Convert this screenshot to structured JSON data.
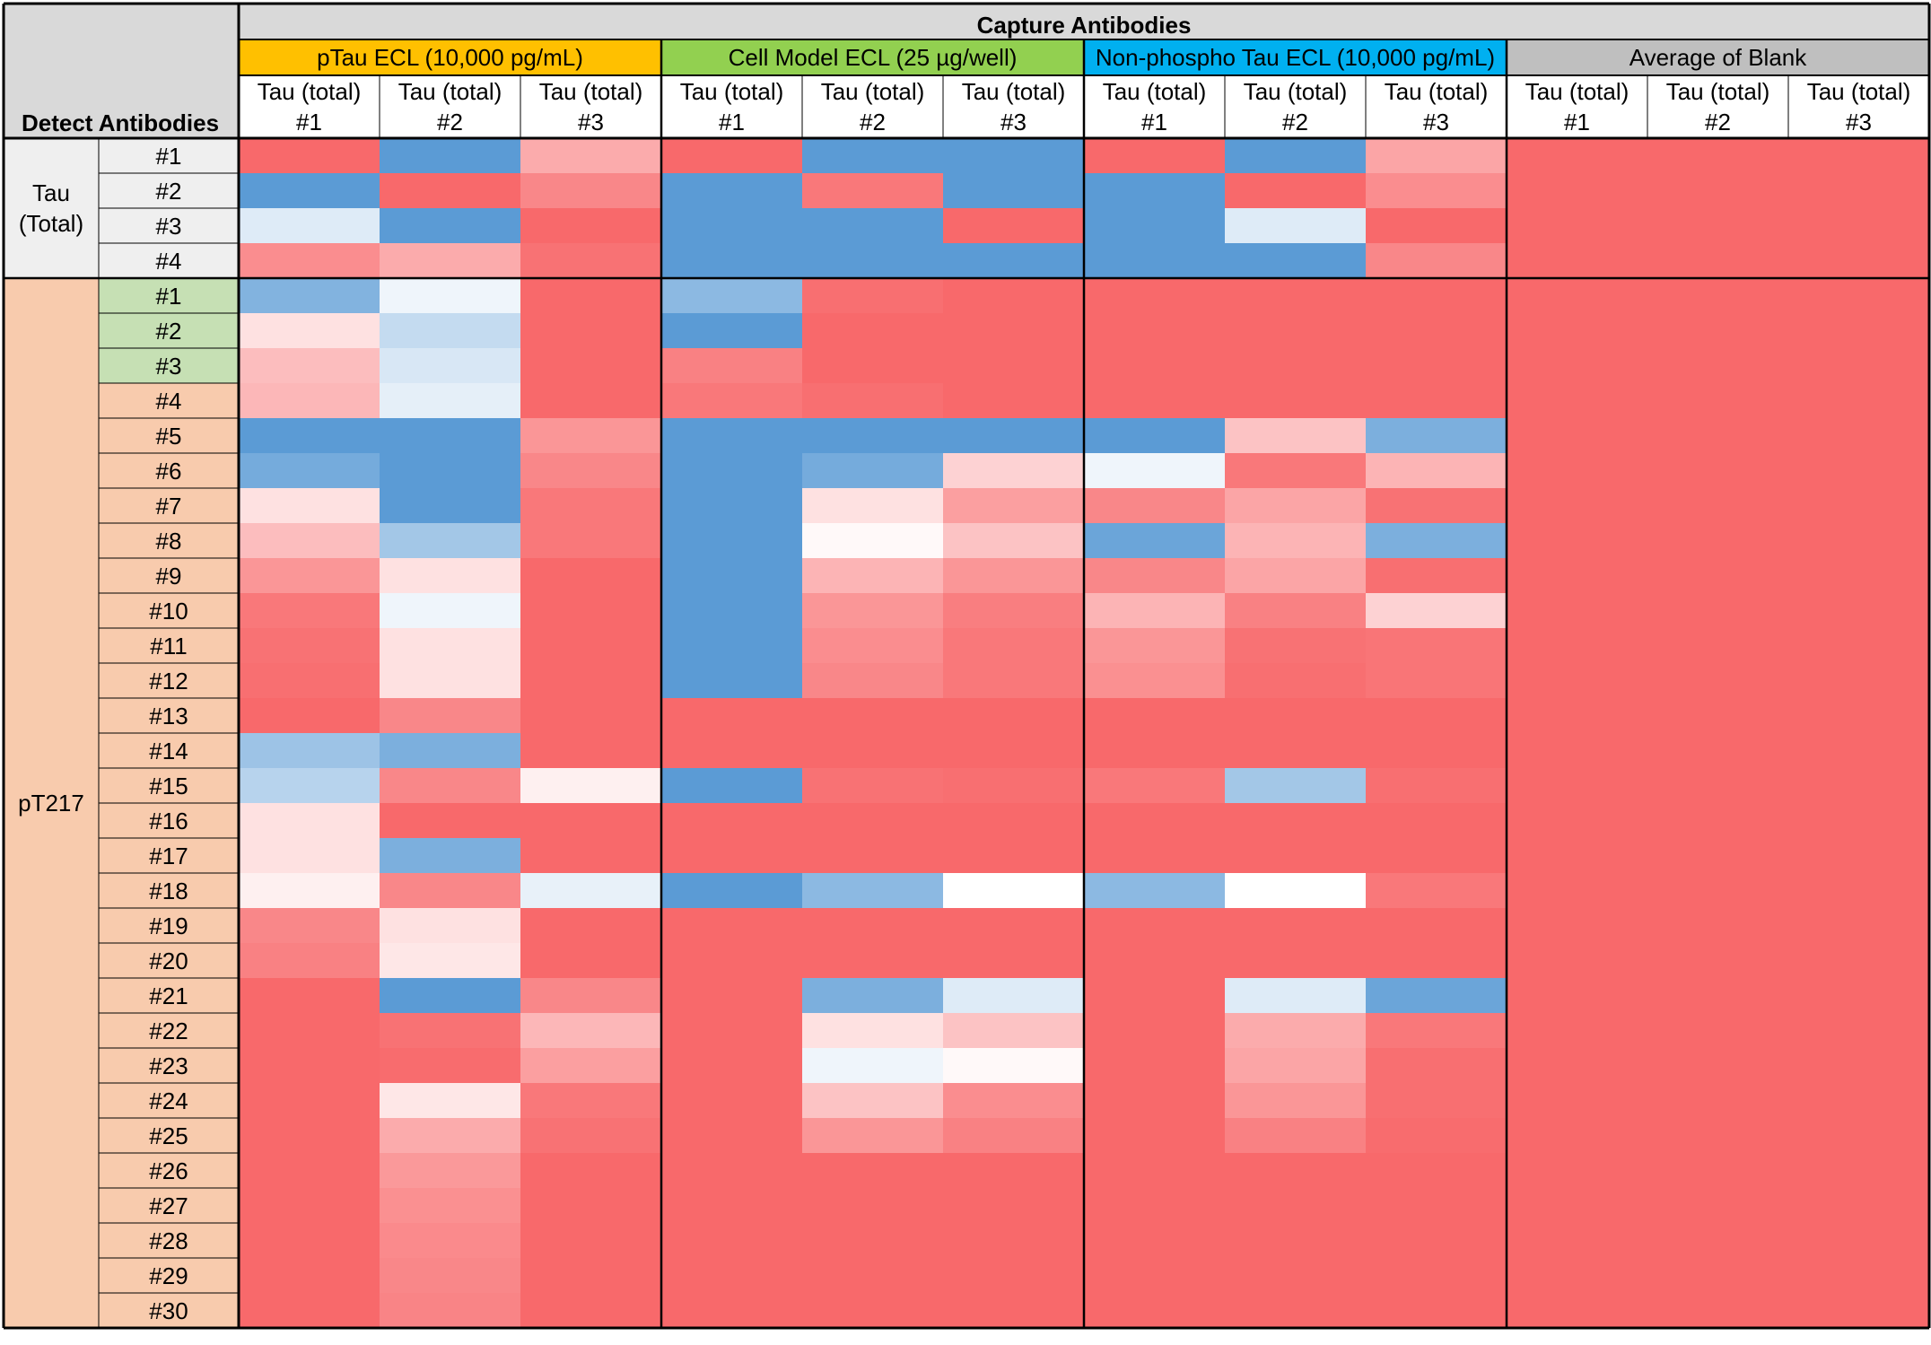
{
  "chart_data": {
    "type": "heatmap",
    "title": "Capture Antibodies",
    "row_axis_label": "Detect Antibodies",
    "col_sub_label_top": "Tau (total)",
    "groups": [
      {
        "name": "pTau ECL (10,000 pg/mL)",
        "color": "#ffc000",
        "columns": [
          "#1",
          "#2",
          "#3"
        ]
      },
      {
        "name": "Cell Model ECL (25 µg/well)",
        "color": "#92d050",
        "columns": [
          "#1",
          "#2",
          "#3"
        ]
      },
      {
        "name": "Non-phospho Tau ECL (10,000 pg/mL)",
        "color": "#00b0f0",
        "columns": [
          "#1",
          "#2",
          "#3"
        ]
      },
      {
        "name": "Average of Blank",
        "color": "#bfbfbf",
        "columns": [
          "#1",
          "#2",
          "#3"
        ]
      }
    ],
    "row_groups": [
      {
        "name_lines": [
          "Tau",
          "(Total)"
        ],
        "color": "#efefef",
        "rows": [
          "#1",
          "#2",
          "#3",
          "#4"
        ],
        "row_colors": [
          "#efefef",
          "#efefef",
          "#efefef",
          "#efefef"
        ]
      },
      {
        "name_lines": [
          "pT217"
        ],
        "color": "#f8cbad",
        "rows": [
          "#1",
          "#2",
          "#3",
          "#4",
          "#5",
          "#6",
          "#7",
          "#8",
          "#9",
          "#10",
          "#11",
          "#12",
          "#13",
          "#14",
          "#15",
          "#16",
          "#17",
          "#18",
          "#19",
          "#20",
          "#21",
          "#22",
          "#23",
          "#24",
          "#25",
          "#26",
          "#27",
          "#28",
          "#29",
          "#30"
        ],
        "row_colors": [
          "#c6e0b4",
          "#c6e0b4",
          "#c6e0b4",
          "#f8cbad",
          "#f8cbad",
          "#f8cbad",
          "#f8cbad",
          "#f8cbad",
          "#f8cbad",
          "#f8cbad",
          "#f8cbad",
          "#f8cbad",
          "#f8cbad",
          "#f8cbad",
          "#f8cbad",
          "#f8cbad",
          "#f8cbad",
          "#f8cbad",
          "#f8cbad",
          "#f8cbad",
          "#f8cbad",
          "#f8cbad",
          "#f8cbad",
          "#f8cbad",
          "#f8cbad",
          "#f8cbad",
          "#f8cbad",
          "#f8cbad",
          "#f8cbad",
          "#f8cbad"
        ]
      }
    ],
    "color_scale": {
      "low": "#f8696b",
      "mid": "#ffffff",
      "high": "#5b9bd5",
      "min": 0,
      "max": 100
    },
    "values": [
      [
        0,
        100,
        22,
        0,
        100,
        100,
        0,
        100,
        20,
        0,
        0,
        0
      ],
      [
        100,
        0,
        10,
        100,
        5,
        100,
        100,
        0,
        12,
        0,
        0,
        0
      ],
      [
        60,
        100,
        0,
        100,
        100,
        0,
        100,
        60,
        0,
        0,
        0,
        0
      ],
      [
        12,
        22,
        3,
        100,
        100,
        100,
        100,
        100,
        10,
        0,
        0,
        0
      ],
      [
        88,
        55,
        0,
        85,
        2,
        0,
        0,
        0,
        0,
        0,
        0,
        0
      ],
      [
        40,
        68,
        0,
        100,
        0,
        0,
        0,
        0,
        0,
        0,
        0,
        0
      ],
      [
        28,
        62,
        0,
        8,
        0,
        0,
        0,
        0,
        0,
        0,
        0,
        0
      ],
      [
        26,
        58,
        0,
        5,
        2,
        0,
        0,
        0,
        0,
        0,
        0,
        0
      ],
      [
        100,
        100,
        15,
        100,
        100,
        100,
        100,
        30,
        90,
        0,
        0,
        0
      ],
      [
        92,
        100,
        10,
        100,
        92,
        35,
        55,
        5,
        25,
        0,
        0,
        0
      ],
      [
        40,
        100,
        5,
        100,
        40,
        18,
        10,
        20,
        3,
        0,
        0,
        0
      ],
      [
        28,
        78,
        5,
        100,
        48,
        30,
        95,
        25,
        90,
        0,
        0,
        0
      ],
      [
        15,
        40,
        0,
        100,
        25,
        15,
        10,
        20,
        2,
        0,
        0,
        0
      ],
      [
        5,
        55,
        0,
        100,
        15,
        7,
        25,
        8,
        35,
        0,
        0,
        0
      ],
      [
        3,
        40,
        0,
        100,
        12,
        5,
        15,
        3,
        4,
        0,
        0,
        0
      ],
      [
        2,
        40,
        0,
        100,
        10,
        5,
        13,
        2,
        4,
        0,
        0,
        0
      ],
      [
        0,
        10,
        0,
        0,
        0,
        0,
        0,
        0,
        0,
        0,
        0,
        0
      ],
      [
        80,
        90,
        0,
        0,
        0,
        0,
        0,
        0,
        0,
        0,
        0,
        0
      ],
      [
        72,
        10,
        45,
        100,
        3,
        2,
        5,
        78,
        2,
        0,
        0,
        0
      ],
      [
        40,
        0,
        0,
        0,
        0,
        0,
        0,
        0,
        0,
        0,
        0,
        0
      ],
      [
        40,
        90,
        0,
        0,
        0,
        0,
        0,
        0,
        0,
        0,
        0,
        0
      ],
      [
        45,
        10,
        57,
        100,
        85,
        50,
        85,
        50,
        5,
        0,
        0,
        0
      ],
      [
        10,
        40,
        0,
        0,
        0,
        0,
        0,
        0,
        0,
        0,
        0,
        0
      ],
      [
        8,
        42,
        0,
        0,
        0,
        0,
        0,
        0,
        0,
        0,
        0,
        0
      ],
      [
        0,
        100,
        10,
        0,
        90,
        60,
        0,
        60,
        95,
        0,
        0,
        0
      ],
      [
        0,
        3,
        26,
        0,
        40,
        30,
        0,
        22,
        5,
        0,
        0,
        0
      ],
      [
        0,
        1,
        18,
        0,
        55,
        48,
        0,
        20,
        2,
        0,
        0,
        0
      ],
      [
        0,
        42,
        5,
        0,
        30,
        12,
        0,
        15,
        2,
        0,
        0,
        0
      ],
      [
        0,
        22,
        3,
        0,
        15,
        8,
        0,
        8,
        1,
        0,
        0,
        0
      ],
      [
        0,
        16,
        0,
        0,
        0,
        0,
        0,
        0,
        0,
        0,
        0,
        0
      ],
      [
        0,
        13,
        0,
        0,
        0,
        0,
        0,
        0,
        0,
        0,
        0,
        0
      ],
      [
        0,
        11,
        0,
        0,
        0,
        0,
        0,
        0,
        0,
        0,
        0,
        0
      ],
      [
        0,
        10,
        0,
        0,
        0,
        0,
        0,
        0,
        0,
        0,
        0,
        0
      ],
      [
        0,
        9,
        0,
        0,
        0,
        0,
        0,
        0,
        0,
        0,
        0,
        0
      ]
    ]
  }
}
